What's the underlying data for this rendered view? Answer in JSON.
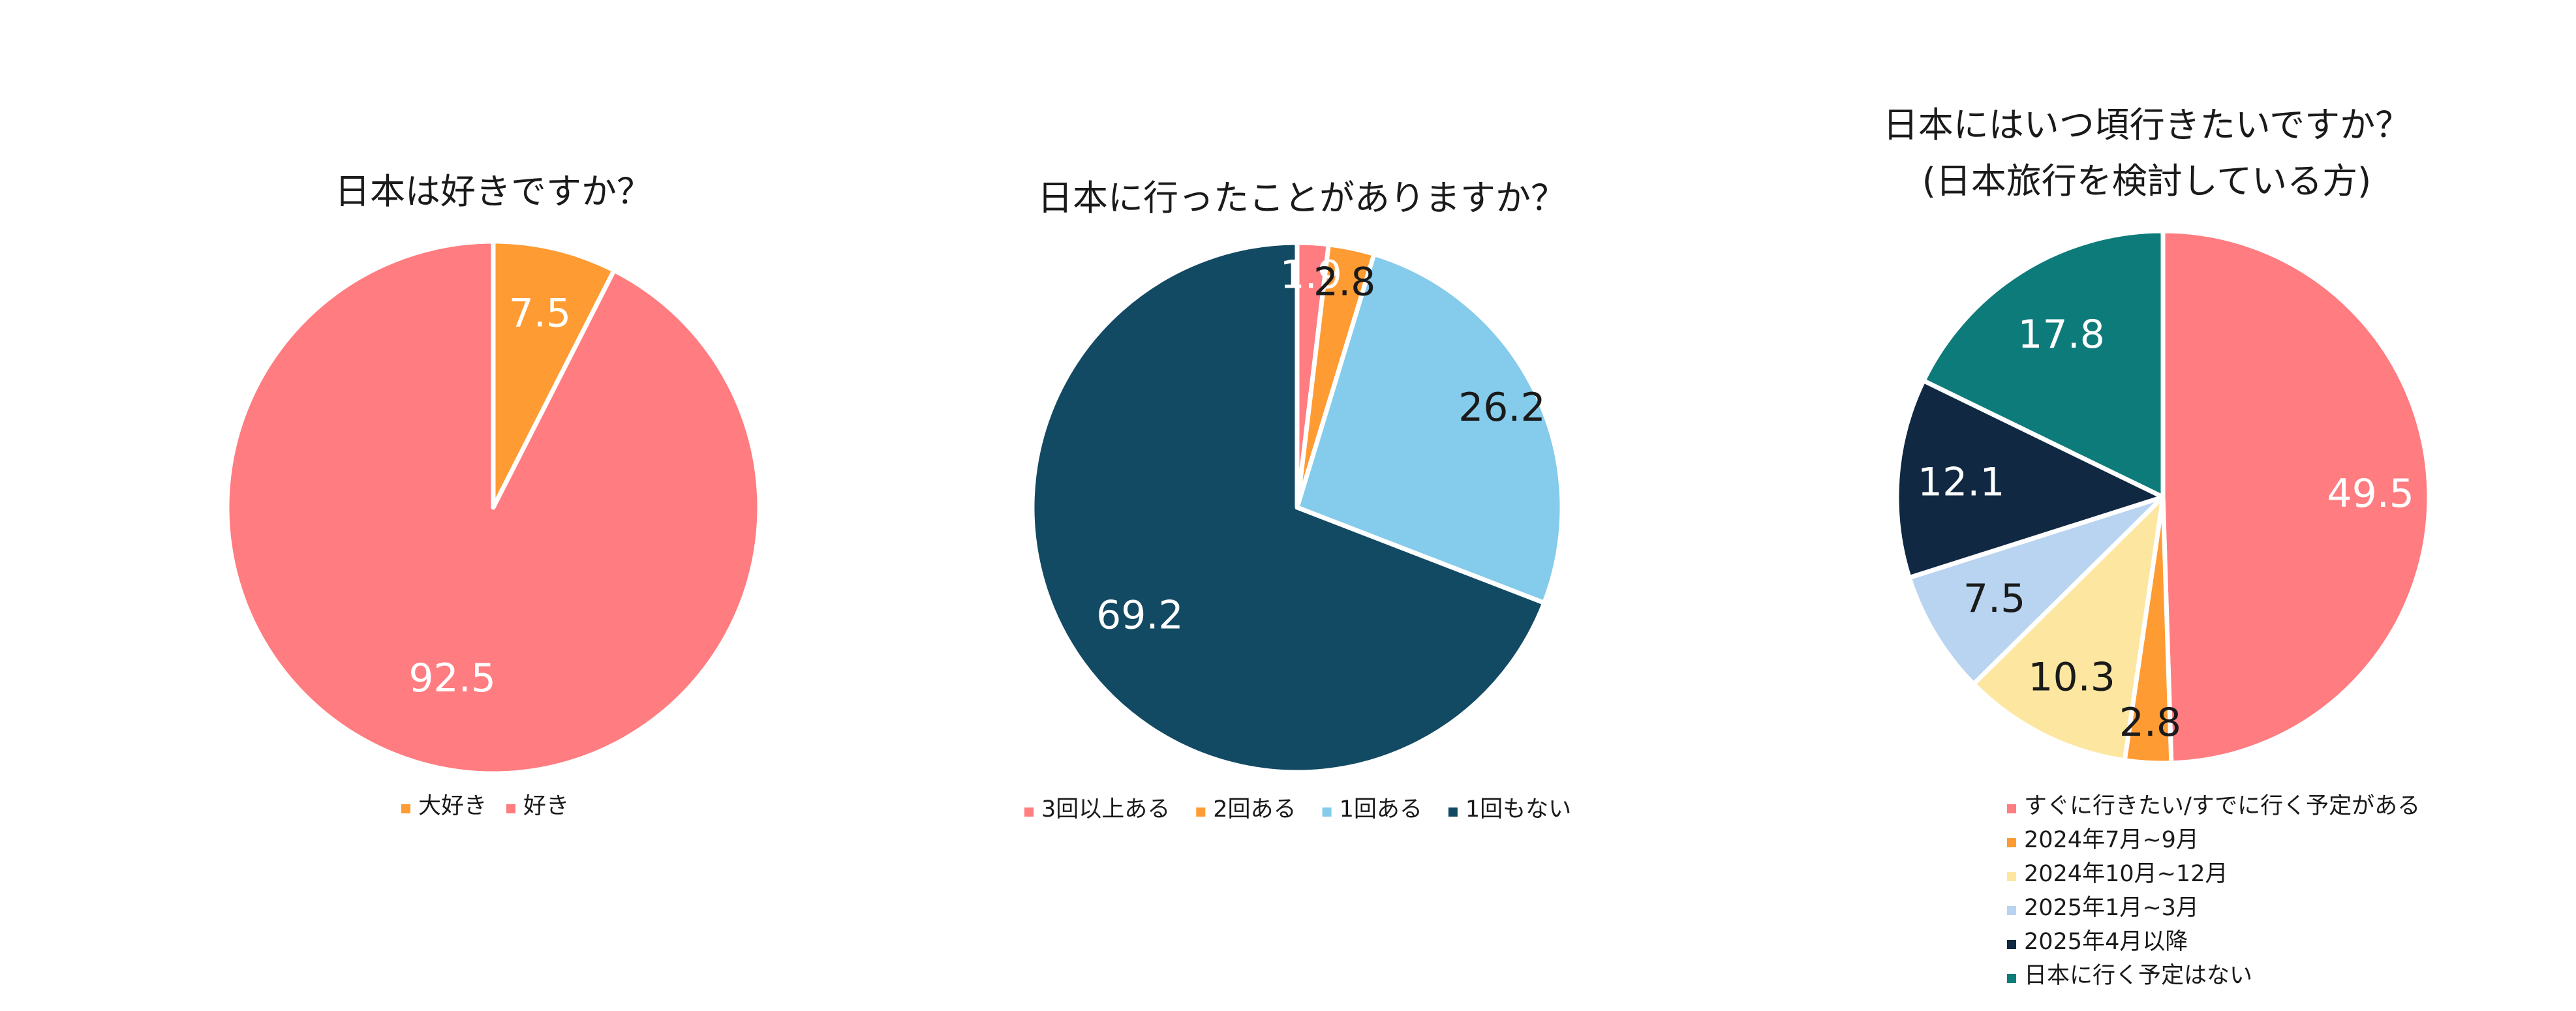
{
  "chart_data": [
    {
      "type": "pie",
      "title": "日本は好きですか？",
      "slices": [
        {
          "label": "大好き",
          "value": 7.5,
          "color": "#FF9B33",
          "label_color": "#ffffff"
        },
        {
          "label": "好き",
          "value": 92.5,
          "color": "#FF7C80",
          "label_color": "#ffffff"
        }
      ],
      "legend": "bottom"
    },
    {
      "type": "pie",
      "title": "日本に行ったことがありますか？",
      "slices": [
        {
          "label": "3回以上ある",
          "value": 1.9,
          "color": "#FF7C80",
          "label_color": "#ffffff"
        },
        {
          "label": "2回ある",
          "value": 2.8,
          "color": "#FF9B33",
          "label_color": "#1a1a1a"
        },
        {
          "label": "1回ある",
          "value": 26.2,
          "color": "#85CBEB",
          "label_color": "#1a1a1a"
        },
        {
          "label": "1回もない",
          "value": 69.2,
          "color": "#124963",
          "label_color": "#ffffff"
        }
      ],
      "legend": "bottom"
    },
    {
      "type": "pie",
      "title": [
        "日本にはいつ頃行きたいですか？",
        "(日本旅行を検討している方)"
      ],
      "slices": [
        {
          "label": "すぐに行きたい/すでに行く予定がある",
          "value": 49.5,
          "color": "#FF7C80",
          "label_color": "#ffffff"
        },
        {
          "label": "2024年7月~9月",
          "value": 2.8,
          "color": "#FF9B33",
          "label_color": "#1a1a1a"
        },
        {
          "label": "2024年10月~12月",
          "value": 10.3,
          "color": "#FDE7A0",
          "label_color": "#1a1a1a"
        },
        {
          "label": "2025年1月~3月",
          "value": 7.5,
          "color": "#B8D4F0",
          "label_color": "#1a1a1a"
        },
        {
          "label": "2025年4月以降",
          "value": 12.1,
          "color": "#102842",
          "label_color": "#ffffff"
        },
        {
          "label": "日本に行く予定はない",
          "value": 17.8,
          "color": "#0E7B7B",
          "label_color": "#ffffff"
        }
      ],
      "legend": "bottom"
    }
  ]
}
